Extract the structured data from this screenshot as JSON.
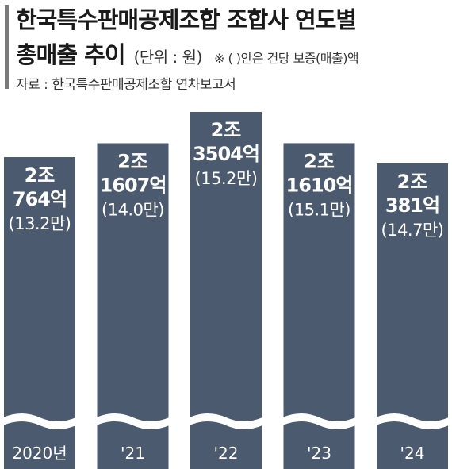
{
  "header": {
    "title_line1": "한국특수판매공제조합 조합사 연도별",
    "title_line2": "총매출 추이",
    "unit": "(단위 : 원)",
    "note": "※ (  )안은 건당 보증(매출)액",
    "source": "자료 : 한국특수판매공제조합 연차보고서"
  },
  "colors": {
    "bar": "#4b5a6e",
    "text_on_bar": "#ffffff",
    "accent": "#7a7a7a"
  },
  "chart_data": {
    "type": "bar",
    "categories": [
      "2020년",
      "'21",
      "'22",
      "'23",
      "'24"
    ],
    "values_label": [
      "2조\n764억",
      "2조\n1607억",
      "2조\n3504억",
      "2조\n1610억",
      "2조\n381억"
    ],
    "per_case_label": [
      "(13.2만)",
      "(14.0만)",
      "(15.2만)",
      "(15.1만)",
      "(14.7만)"
    ],
    "series": [
      {
        "values": [
          20764,
          21607,
          23504,
          21610,
          20381
        ]
      }
    ],
    "value_unit": "억원",
    "per_case_values": [
      13.2,
      14.0,
      15.2,
      15.1,
      14.7
    ],
    "axis_break": true,
    "grid": false
  }
}
